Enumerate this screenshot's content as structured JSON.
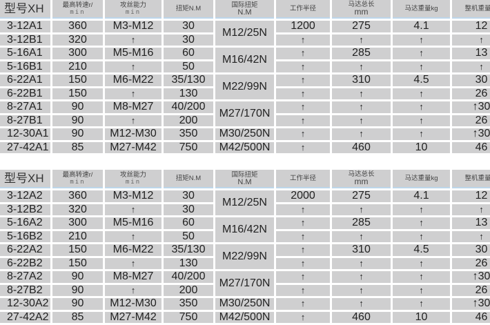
{
  "headers": {
    "model": "型号XH",
    "speed": "最高转速r/",
    "speed_unit": "min",
    "tap": "攻丝能力",
    "tap_unit": "min",
    "torque": "扭矩N.M",
    "intl_torque": "国际扭矩",
    "intl_torque_unit": "N.M",
    "radius": "工作半径",
    "motor_len": "马达总长",
    "motor_len_unit": "mm",
    "motor_weight": "马达重量kg",
    "total_weight": "整机重量kg"
  },
  "tables": [
    {
      "rows": [
        [
          "3-12A1",
          "360",
          "M3-M12",
          "30",
          "M12/25N",
          "1200",
          "275",
          "4.1",
          "12"
        ],
        [
          "3-12B1",
          "320",
          "↑",
          "30",
          null,
          "↑",
          "↑",
          "↑",
          "↑"
        ],
        [
          "5-16A1",
          "300",
          "M5-M16",
          "60",
          "M16/42N",
          "↑",
          "285",
          "↑",
          "13"
        ],
        [
          "5-16B1",
          "210",
          "↑",
          "50",
          null,
          "↑",
          "↑",
          "↑",
          "↑"
        ],
        [
          "6-22A1",
          "150",
          "M6-M22",
          "35/130",
          "M22/99N",
          "↑",
          "310",
          "4.5",
          "30"
        ],
        [
          "6-22B1",
          "150",
          "↑",
          "130",
          null,
          "↑",
          "↑",
          "↑",
          "26"
        ],
        [
          "8-27A1",
          "90",
          "M8-M27",
          "40/200",
          "M27/170N",
          "↑",
          "↑",
          "↑",
          "↑30"
        ],
        [
          "8-27B1",
          "90",
          "↑",
          "200",
          null,
          "↑",
          "↑",
          "↑",
          "26"
        ],
        [
          "12-30A1",
          "90",
          "M12-M30",
          "350",
          "M30/250N",
          "↑",
          "↑",
          "↑",
          "↑30"
        ],
        [
          "27-42A1",
          "85",
          "M27-M42",
          "750",
          "M42/500N",
          "↑",
          "460",
          "10",
          "46"
        ]
      ]
    },
    {
      "rows": [
        [
          "3-12A2",
          "360",
          "M3-M12",
          "30",
          "M12/25N",
          "2000",
          "275",
          "4.1",
          "12"
        ],
        [
          "3-12B2",
          "320",
          "↑",
          "30",
          null,
          "↑",
          "↑",
          "↑",
          "↑"
        ],
        [
          "5-16A2",
          "300",
          "M5-M16",
          "60",
          "M16/42N",
          "↑",
          "285",
          "↑",
          "13"
        ],
        [
          "5-16B2",
          "210",
          "↑",
          "50",
          null,
          "↑",
          "↑",
          "↑",
          "↑"
        ],
        [
          "6-22A2",
          "150",
          "M6-M22",
          "35/130",
          "M22/99N",
          "↑",
          "310",
          "4.5",
          "30"
        ],
        [
          "6-22B2",
          "150",
          "↑",
          "130",
          null,
          "↑",
          "↑",
          "↑",
          "26"
        ],
        [
          "8-27A2",
          "90",
          "M8-M27",
          "40/200",
          "M27/170N",
          "↑",
          "↑",
          "↑",
          "↑30"
        ],
        [
          "8-27B2",
          "90",
          "↑",
          "200",
          null,
          "↑",
          "↑",
          "↑",
          "26"
        ],
        [
          "12-30A2",
          "90",
          "M12-M30",
          "350",
          "M30/250N",
          "↑",
          "↑",
          "↑",
          "↑30"
        ],
        [
          "27-42A2",
          "85",
          "M27-M42",
          "750",
          "M42/500N",
          "↑",
          "460",
          "10",
          "46"
        ]
      ]
    }
  ]
}
